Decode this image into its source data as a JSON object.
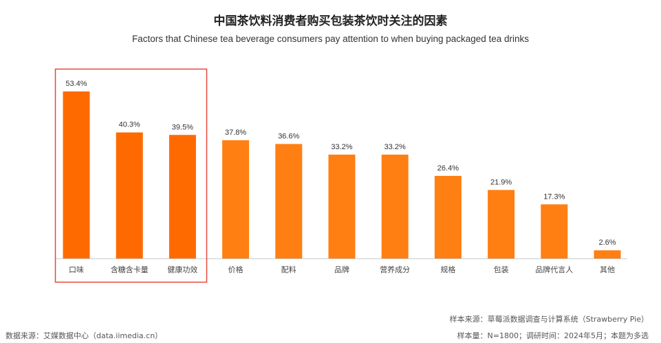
{
  "title": "中国茶饮料消费者购买包装茶饮时关注的因素",
  "subtitle": "Factors that Chinese tea beverage consumers pay attention to when buying packaged tea drinks",
  "colors": {
    "highlight_bar": "#FF6A00",
    "bar": "#FF7F12",
    "highlight_box": "#E8473A",
    "axis": "#CCCCCC"
  },
  "chart_data": {
    "type": "bar",
    "categories": [
      "口味",
      "含糖含卡量",
      "健康功效",
      "价格",
      "配料",
      "品牌",
      "营养成分",
      "规格",
      "包装",
      "品牌代言人",
      "其他"
    ],
    "values": [
      53.4,
      40.3,
      39.5,
      37.8,
      36.6,
      33.2,
      33.2,
      26.4,
      21.9,
      17.3,
      2.6
    ],
    "value_labels": [
      "53.4%",
      "40.3%",
      "39.5%",
      "37.8%",
      "36.6%",
      "33.2%",
      "33.2%",
      "26.4%",
      "21.9%",
      "17.3%",
      "2.6%"
    ],
    "unit": "%",
    "highlighted_categories": [
      "口味",
      "含糖含卡量",
      "健康功效"
    ],
    "ylim": [
      0,
      60
    ],
    "grid": false,
    "legend": "none"
  },
  "footer": {
    "data_source": "数据来源：艾媒数据中心（data.iimedia.cn）",
    "sample_source": "样本来源：草莓派数据调查与计算系统（Strawberry Pie）",
    "sample_info": "样本量：N=1800；调研时间：2024年5月；本题为多选"
  }
}
